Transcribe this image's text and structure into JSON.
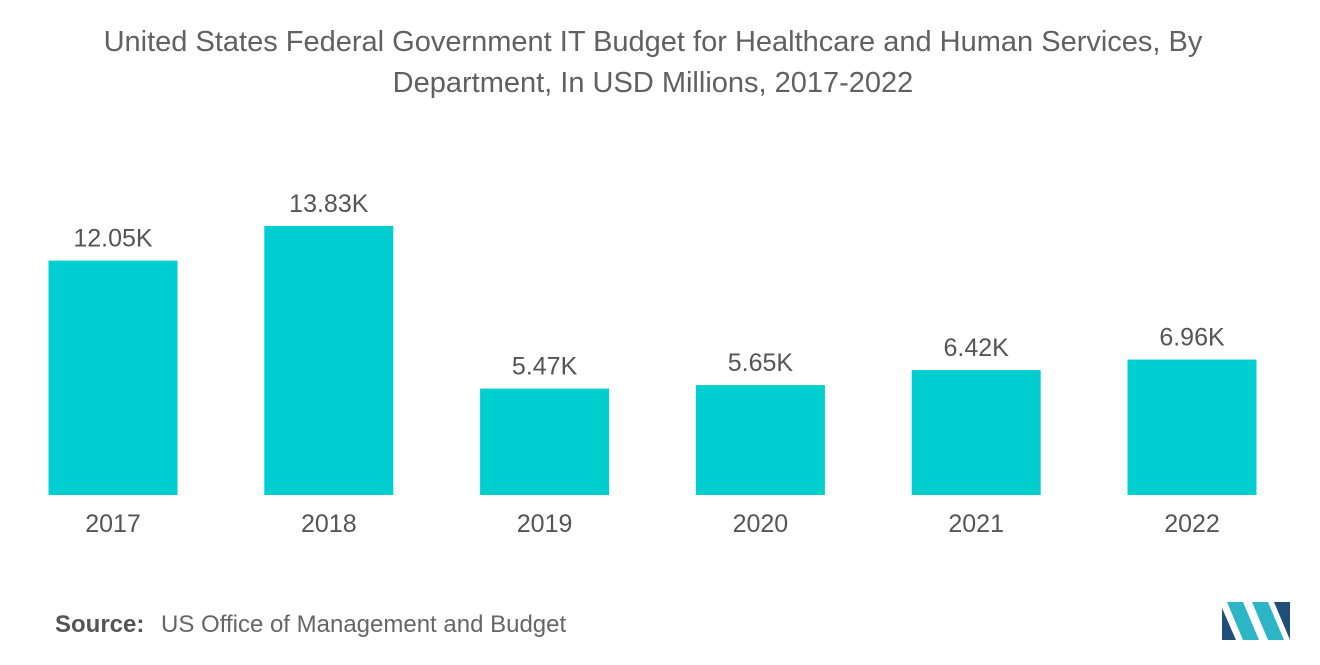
{
  "title_line1": "United States Federal Government IT Budget for Healthcare and Human Services, By",
  "title_line2": "Department, In USD Millions, 2017-2022",
  "source_label": "Source:",
  "source_text": "US Office of Management and Budget",
  "colors": {
    "bar": "#00CED1",
    "text": "#555555",
    "logo_dark": "#1F4E79",
    "logo_light": "#2BB5C5"
  },
  "chart_data": {
    "type": "bar",
    "categories": [
      "2017",
      "2018",
      "2019",
      "2020",
      "2021",
      "2022"
    ],
    "values": [
      12050,
      13830,
      5470,
      5650,
      6420,
      6960
    ],
    "data_labels": [
      "12.05K",
      "13.83K",
      "5.47K",
      "5.65K",
      "6.42K",
      "6.96K"
    ],
    "title": "United States Federal Government IT Budget for Healthcare and Human Services, By Department, In USD Millions, 2017-2022",
    "xlabel": "",
    "ylabel": "",
    "ylim": [
      0,
      14000
    ],
    "grid": false,
    "legend": "none"
  }
}
